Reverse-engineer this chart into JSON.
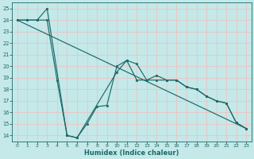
{
  "xlabel": "Humidex (Indice chaleur)",
  "bg_color": "#c5e8e8",
  "grid_color": "#e8c8c8",
  "line_color": "#1a6b6b",
  "xlim": [
    -0.5,
    23.5
  ],
  "ylim": [
    13.5,
    25.5
  ],
  "xticks": [
    0,
    1,
    2,
    3,
    4,
    5,
    6,
    7,
    8,
    9,
    10,
    11,
    12,
    13,
    14,
    15,
    16,
    17,
    18,
    19,
    20,
    21,
    22,
    23
  ],
  "yticks": [
    14,
    15,
    16,
    17,
    18,
    19,
    20,
    21,
    22,
    23,
    24,
    25
  ],
  "line1_x": [
    0,
    1,
    2,
    3,
    4,
    5,
    6,
    7,
    8,
    9,
    10,
    11,
    12,
    13,
    14,
    15,
    16,
    17,
    18,
    19,
    20,
    21,
    22,
    23
  ],
  "line1_y": [
    24,
    24,
    24,
    24,
    18.8,
    14.0,
    13.8,
    15.0,
    16.5,
    16.6,
    20.0,
    20.5,
    18.8,
    18.8,
    19.2,
    18.8,
    18.8,
    18.2,
    18.0,
    17.4,
    17.0,
    16.8,
    15.1,
    14.6
  ],
  "line2_x": [
    0,
    1,
    2,
    3,
    5,
    6,
    10,
    11,
    12,
    13,
    14,
    15,
    16,
    17,
    18,
    19,
    20,
    21,
    22,
    23
  ],
  "line2_y": [
    24,
    24,
    24,
    25,
    14.0,
    13.8,
    19.5,
    20.5,
    20.2,
    18.8,
    18.8,
    18.8,
    18.8,
    18.2,
    18.0,
    17.4,
    17.0,
    16.8,
    15.1,
    14.6
  ],
  "line3_x": [
    0,
    23
  ],
  "line3_y": [
    24,
    14.6
  ]
}
